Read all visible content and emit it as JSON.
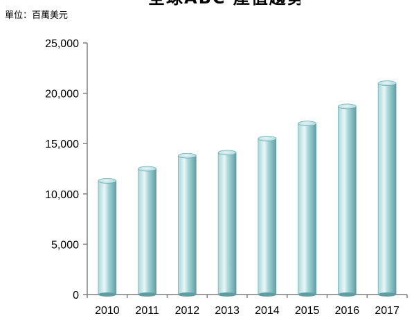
{
  "title_fragment": "全球ABC 產值趨勢",
  "unit_label": "單位：百萬美元",
  "colors": {
    "bar_light": "#eaf6f7",
    "bar_mid": "#a9d7da",
    "bar_dark": "#5e9ea3",
    "axis": "#7f7f7f"
  },
  "chart_data": {
    "type": "bar",
    "categories": [
      "2010",
      "2011",
      "2012",
      "2013",
      "2014",
      "2015",
      "2016",
      "2017"
    ],
    "values": [
      11300,
      12500,
      13800,
      14100,
      15500,
      17000,
      18700,
      21000
    ],
    "ylim": [
      0,
      25000
    ],
    "yticks": [
      0,
      5000,
      10000,
      15000,
      20000,
      25000
    ],
    "ytick_labels": [
      "0",
      "5,000",
      "10,000",
      "15,000",
      "20,000",
      "25,000"
    ],
    "grid": false,
    "legend": "none"
  }
}
